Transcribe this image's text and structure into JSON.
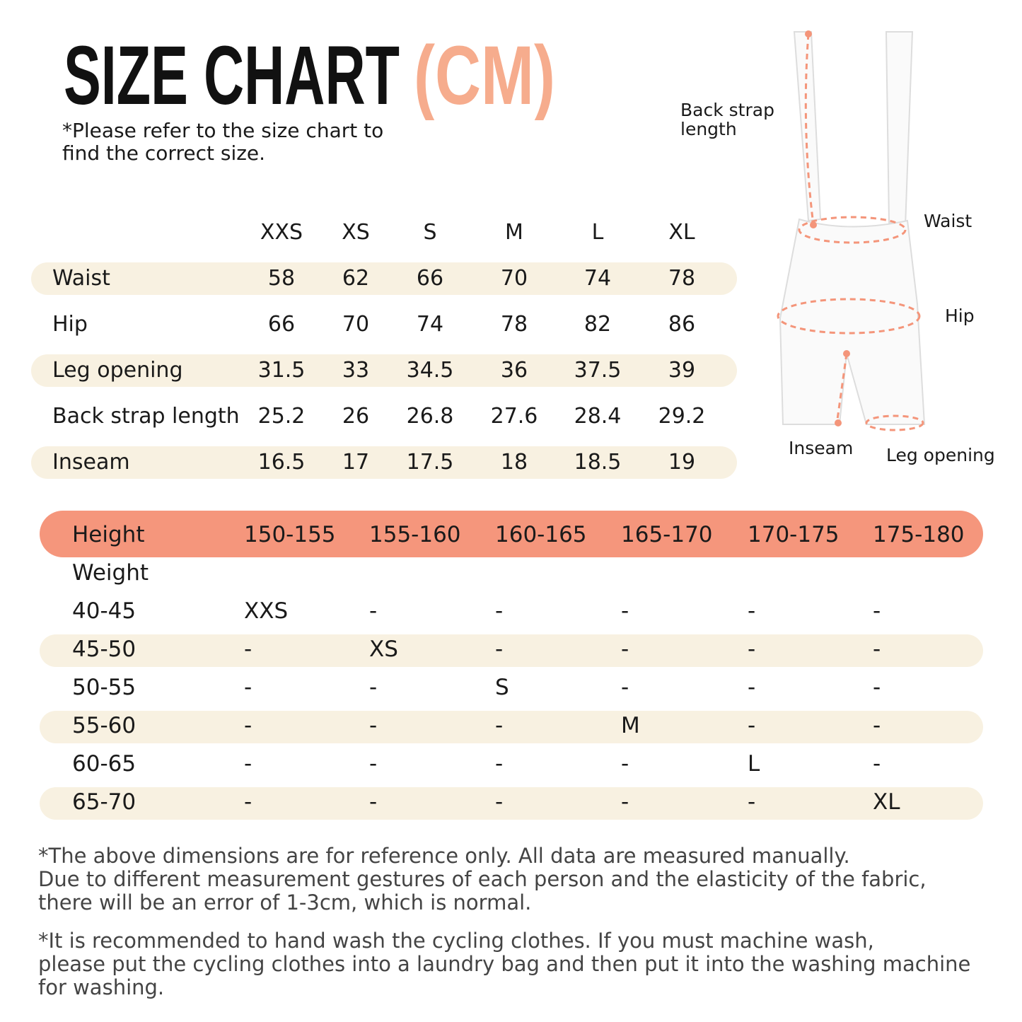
{
  "header": {
    "title": "SIZE CHART",
    "unit": "(CM)",
    "note": [
      "*Please refer to the size chart to",
      "find the correct size."
    ]
  },
  "measurements": {
    "columns": [
      "XXS",
      "XS",
      "S",
      "M",
      "L",
      "XL"
    ],
    "rows": [
      {
        "label": "Waist",
        "values": [
          58,
          62,
          66,
          70,
          74,
          78
        ]
      },
      {
        "label": "Hip",
        "values": [
          66,
          70,
          74,
          78,
          82,
          86
        ]
      },
      {
        "label": "Leg opening",
        "values": [
          31.5,
          33,
          34.5,
          36,
          37.5,
          39
        ]
      },
      {
        "label": "Back strap length",
        "values": [
          25.2,
          26,
          26.8,
          27.6,
          28.4,
          29.2
        ]
      },
      {
        "label": "Inseam",
        "values": [
          16.5,
          17,
          17.5,
          18,
          18.5,
          19
        ]
      }
    ]
  },
  "diagram": {
    "labels": {
      "back_strap": [
        "Back strap",
        "length"
      ],
      "waist": "Waist",
      "hip": "Hip",
      "inseam": "Inseam",
      "leg_opening": "Leg opening"
    }
  },
  "fit": {
    "height_label": "Height",
    "weight_label": "Weight",
    "heights": [
      "150-155",
      "155-160",
      "160-165",
      "165-170",
      "170-175",
      "175-180"
    ],
    "rows": [
      {
        "weight": "40-45",
        "cells": [
          "XXS",
          "-",
          "-",
          "-",
          "-",
          "-"
        ]
      },
      {
        "weight": "45-50",
        "cells": [
          "-",
          "XS",
          "-",
          "-",
          "-",
          "-"
        ]
      },
      {
        "weight": "50-55",
        "cells": [
          "-",
          "-",
          "S",
          "-",
          "-",
          "-"
        ]
      },
      {
        "weight": "55-60",
        "cells": [
          "-",
          "-",
          "-",
          "M",
          "-",
          "-"
        ]
      },
      {
        "weight": "60-65",
        "cells": [
          "-",
          "-",
          "-",
          "-",
          "L",
          "-"
        ]
      },
      {
        "weight": "65-70",
        "cells": [
          "-",
          "-",
          "-",
          "-",
          "-",
          "XL"
        ]
      }
    ]
  },
  "footnotes": [
    [
      "*The above dimensions are for reference only. All data are measured manually.",
      "Due to different measurement gestures of each person and the elasticity of the fabric,",
      "there will be an error of 1-3cm, which is normal."
    ],
    [
      "*It is recommended to hand wash the cycling clothes. If you must machine wash,",
      "please put the cycling clothes into a laundry bag and then put it into the washing machine",
      "for washing."
    ]
  ]
}
